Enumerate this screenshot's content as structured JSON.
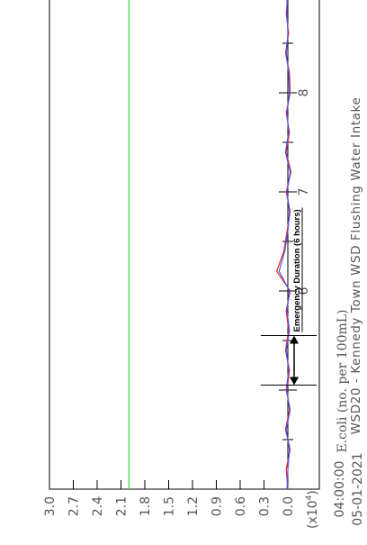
{
  "chart_data": {
    "type": "line",
    "title": "WSD20 - Kennedy Town WSD Flushing Water Intake",
    "ylabel": "E.coli (no. per 100mL)",
    "y_multiplier": "(x10",
    "y_multiplier_exp": "4",
    "y_multiplier_close": ")",
    "ylim": [
      0,
      3.0
    ],
    "y_ticks": [
      "0.0",
      "0.3",
      "0.6",
      "0.9",
      "1.2",
      "1.5",
      "1.8",
      "2.1",
      "2.4",
      "2.7",
      "3.0"
    ],
    "x_start_label_time": "04:00:00",
    "x_start_label_date": "05-01-2021",
    "x_ticks": [
      {
        "label": "6",
        "value": 6
      },
      {
        "label": "7",
        "value": 7
      },
      {
        "label": "8",
        "value": 8
      }
    ],
    "xlim": [
      4.0,
      9.0
    ],
    "threshold": {
      "value": 2.0,
      "color": "#55dd55"
    },
    "series": [
      {
        "color": "#ee2222",
        "x": [
          4.0,
          4.2,
          4.4,
          4.6,
          4.8,
          5.0,
          5.2,
          5.4,
          5.6,
          5.8,
          6.0,
          6.2,
          6.4,
          6.6,
          6.8,
          7.0,
          7.2,
          7.4,
          7.6,
          7.8,
          8.0,
          8.2,
          8.4,
          8.6,
          8.8,
          9.0
        ],
        "values": [
          0.0,
          0.02,
          -0.03,
          0.03,
          -0.02,
          0.01,
          -0.02,
          0.03,
          -0.01,
          0.02,
          -0.03,
          0.14,
          0.05,
          0.01,
          -0.03,
          0.02,
          -0.04,
          0.02,
          -0.02,
          0.02,
          -0.03,
          -0.02,
          0.03,
          -0.01,
          0.02,
          0.0
        ]
      },
      {
        "color": "#4455ee",
        "x": [
          4.0,
          4.2,
          4.4,
          4.6,
          4.8,
          5.0,
          5.2,
          5.4,
          5.6,
          5.8,
          6.0,
          6.2,
          6.4,
          6.6,
          6.8,
          7.0,
          7.2,
          7.4,
          7.6,
          7.8,
          8.0,
          8.2,
          8.4,
          8.6,
          8.8,
          9.0
        ],
        "values": [
          0.01,
          0.0,
          -0.02,
          0.02,
          -0.03,
          0.02,
          -0.01,
          0.02,
          -0.02,
          0.01,
          -0.02,
          0.11,
          0.04,
          0.0,
          -0.02,
          0.01,
          -0.03,
          0.03,
          -0.01,
          0.01,
          -0.02,
          -0.01,
          0.02,
          0.0,
          0.01,
          0.01
        ]
      }
    ],
    "annotation": {
      "label": "Emergency Duration (6 hours)",
      "x_start": 5.05,
      "x_end": 5.55
    },
    "grid": false
  }
}
